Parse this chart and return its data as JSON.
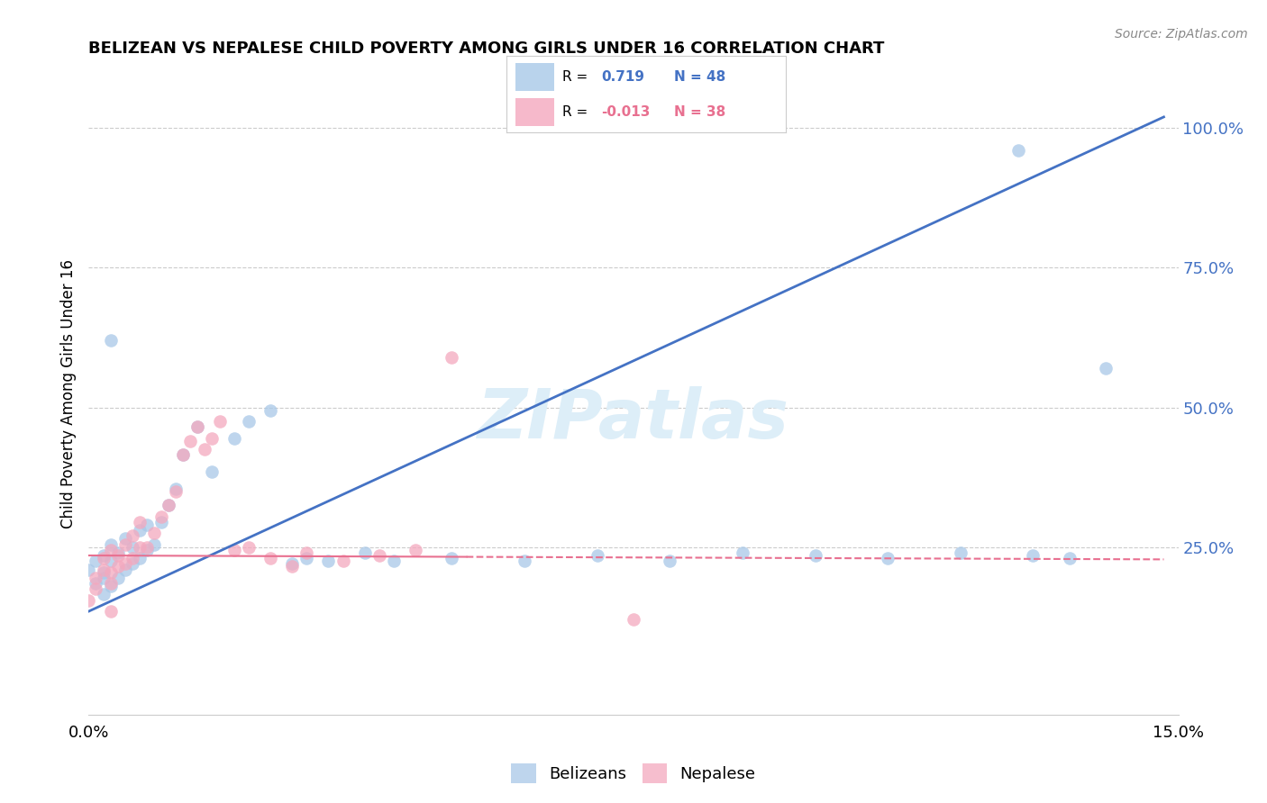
{
  "title": "BELIZEAN VS NEPALESE CHILD POVERTY AMONG GIRLS UNDER 16 CORRELATION CHART",
  "source": "Source: ZipAtlas.com",
  "ylabel": "Child Poverty Among Girls Under 16",
  "xlim": [
    0.0,
    0.15
  ],
  "ylim": [
    -0.05,
    1.1
  ],
  "yticks_right": [
    0.25,
    0.5,
    0.75,
    1.0
  ],
  "ytick_right_labels": [
    "25.0%",
    "50.0%",
    "75.0%",
    "100.0%"
  ],
  "watermark": "ZIPatlas",
  "blue_color": "#A8C8E8",
  "pink_color": "#F4A8BE",
  "blue_line_color": "#4472C4",
  "pink_line_color": "#E87090",
  "background_color": "#FFFFFF",
  "grid_color": "#CCCCCC",
  "belizean_x": [
    0.0,
    0.001,
    0.001,
    0.002,
    0.002,
    0.002,
    0.002,
    0.003,
    0.003,
    0.003,
    0.004,
    0.004,
    0.005,
    0.005,
    0.006,
    0.006,
    0.007,
    0.007,
    0.008,
    0.008,
    0.009,
    0.01,
    0.011,
    0.012,
    0.013,
    0.015,
    0.017,
    0.02,
    0.022,
    0.025,
    0.028,
    0.03,
    0.033,
    0.038,
    0.042,
    0.05,
    0.06,
    0.07,
    0.08,
    0.09,
    0.1,
    0.11,
    0.12,
    0.13,
    0.135,
    0.14,
    0.128,
    0.003
  ],
  "belizean_y": [
    0.21,
    0.185,
    0.225,
    0.165,
    0.205,
    0.235,
    0.195,
    0.18,
    0.225,
    0.255,
    0.195,
    0.24,
    0.21,
    0.265,
    0.22,
    0.25,
    0.28,
    0.23,
    0.245,
    0.29,
    0.255,
    0.295,
    0.325,
    0.355,
    0.415,
    0.465,
    0.385,
    0.445,
    0.475,
    0.495,
    0.22,
    0.23,
    0.225,
    0.24,
    0.225,
    0.23,
    0.225,
    0.235,
    0.225,
    0.24,
    0.235,
    0.23,
    0.24,
    0.235,
    0.23,
    0.57,
    0.96,
    0.62
  ],
  "nepalese_x": [
    0.0,
    0.001,
    0.001,
    0.002,
    0.002,
    0.003,
    0.003,
    0.003,
    0.004,
    0.004,
    0.005,
    0.005,
    0.006,
    0.006,
    0.007,
    0.007,
    0.008,
    0.009,
    0.01,
    0.011,
    0.012,
    0.013,
    0.014,
    0.015,
    0.016,
    0.017,
    0.018,
    0.02,
    0.022,
    0.025,
    0.028,
    0.03,
    0.035,
    0.04,
    0.045,
    0.075,
    0.05,
    0.003
  ],
  "nepalese_y": [
    0.155,
    0.175,
    0.195,
    0.21,
    0.23,
    0.185,
    0.245,
    0.205,
    0.235,
    0.215,
    0.255,
    0.22,
    0.27,
    0.23,
    0.295,
    0.25,
    0.25,
    0.275,
    0.305,
    0.325,
    0.35,
    0.415,
    0.44,
    0.465,
    0.425,
    0.445,
    0.475,
    0.245,
    0.25,
    0.23,
    0.215,
    0.24,
    0.225,
    0.235,
    0.245,
    0.12,
    0.59,
    0.135
  ],
  "blue_line_x": [
    0.0,
    0.148
  ],
  "blue_line_y": [
    0.135,
    1.02
  ],
  "pink_line_x": [
    0.0,
    0.148
  ],
  "pink_line_y": [
    0.235,
    0.228
  ]
}
